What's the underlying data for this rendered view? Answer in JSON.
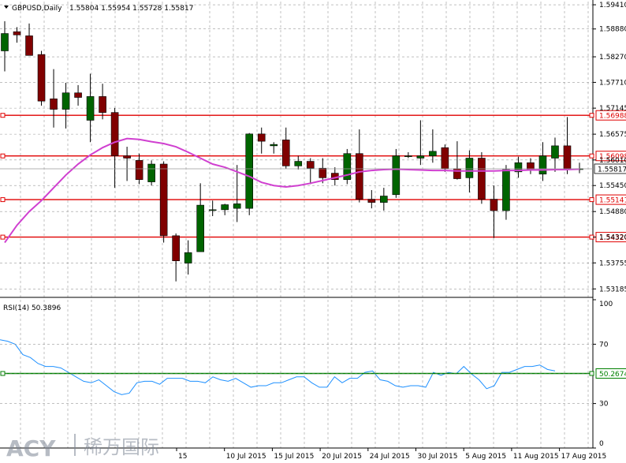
{
  "chart_data": {
    "type": "candlestick",
    "symbol_header": "GBPUSD,Daily",
    "ohlc_header": "1.55804 1.55954 1.55728 1.55817",
    "price_ticks": [
      "1.59410",
      "1.58880",
      "1.58270",
      "1.57710",
      "1.57145",
      "1.56575",
      "1.56010",
      "1.55450",
      "1.54880",
      "1.54320",
      "1.53755",
      "1.53185"
    ],
    "price_range": [
      1.53,
      1.5948
    ],
    "x_labels": [
      {
        "idx": 0,
        "text": "15"
      },
      {
        "idx": 5,
        "text": "10 Jul 2015"
      },
      {
        "idx": 10,
        "text": "15 Jul 2015"
      },
      {
        "idx": 15,
        "text": "20 Jul 2015"
      },
      {
        "idx": 20,
        "text": "24 Jul 2015"
      },
      {
        "idx": 25,
        "text": "30 Jul 2015"
      },
      {
        "idx": 30,
        "text": "5 Aug 2015"
      },
      {
        "idx": 35,
        "text": "11 Aug 2015"
      },
      {
        "idx": 40,
        "text": "17 Aug 2015"
      }
    ],
    "candles": [
      {
        "o": 1.584,
        "h": 1.5905,
        "l": 1.5795,
        "c": 1.5878
      },
      {
        "o": 1.5882,
        "h": 1.5892,
        "l": 1.5858,
        "c": 1.5875
      },
      {
        "o": 1.5873,
        "h": 1.59,
        "l": 1.583,
        "c": 1.583
      },
      {
        "o": 1.5832,
        "h": 1.584,
        "l": 1.572,
        "c": 1.573
      },
      {
        "o": 1.5735,
        "h": 1.58,
        "l": 1.5672,
        "c": 1.5712
      },
      {
        "o": 1.5712,
        "h": 1.577,
        "l": 1.567,
        "c": 1.5748
      },
      {
        "o": 1.5748,
        "h": 1.5765,
        "l": 1.572,
        "c": 1.5738
      },
      {
        "o": 1.5688,
        "h": 1.579,
        "l": 1.564,
        "c": 1.574
      },
      {
        "o": 1.574,
        "h": 1.5768,
        "l": 1.569,
        "c": 1.5705
      },
      {
        "o": 1.5705,
        "h": 1.5715,
        "l": 1.554,
        "c": 1.561
      },
      {
        "o": 1.561,
        "h": 1.563,
        "l": 1.5555,
        "c": 1.5605
      },
      {
        "o": 1.56,
        "h": 1.5615,
        "l": 1.5548,
        "c": 1.5558
      },
      {
        "o": 1.5553,
        "h": 1.56,
        "l": 1.5545,
        "c": 1.5592
      },
      {
        "o": 1.5592,
        "h": 1.5598,
        "l": 1.542,
        "c": 1.5435
      },
      {
        "o": 1.5435,
        "h": 1.544,
        "l": 1.5335,
        "c": 1.538
      },
      {
        "o": 1.5375,
        "h": 1.5425,
        "l": 1.535,
        "c": 1.5398
      },
      {
        "o": 1.54,
        "h": 1.555,
        "l": 1.54,
        "c": 1.5502
      },
      {
        "o": 1.5492,
        "h": 1.5512,
        "l": 1.5478,
        "c": 1.5492
      },
      {
        "o": 1.5492,
        "h": 1.5505,
        "l": 1.548,
        "c": 1.5503
      },
      {
        "o": 1.5495,
        "h": 1.559,
        "l": 1.5465,
        "c": 1.5505
      },
      {
        "o": 1.5495,
        "h": 1.566,
        "l": 1.548,
        "c": 1.5658
      },
      {
        "o": 1.5658,
        "h": 1.5672,
        "l": 1.5615,
        "c": 1.5642
      },
      {
        "o": 1.5632,
        "h": 1.564,
        "l": 1.5615,
        "c": 1.5635
      },
      {
        "o": 1.5645,
        "h": 1.5672,
        "l": 1.5582,
        "c": 1.5588
      },
      {
        "o": 1.5588,
        "h": 1.561,
        "l": 1.558,
        "c": 1.5598
      },
      {
        "o": 1.5598,
        "h": 1.5605,
        "l": 1.5548,
        "c": 1.5583
      },
      {
        "o": 1.5583,
        "h": 1.5605,
        "l": 1.555,
        "c": 1.5562
      },
      {
        "o": 1.5572,
        "h": 1.5585,
        "l": 1.5545,
        "c": 1.5558
      },
      {
        "o": 1.5558,
        "h": 1.5625,
        "l": 1.5548,
        "c": 1.5615
      },
      {
        "o": 1.5615,
        "h": 1.5668,
        "l": 1.5508,
        "c": 1.5515
      },
      {
        "o": 1.5515,
        "h": 1.5535,
        "l": 1.5495,
        "c": 1.5508
      },
      {
        "o": 1.5508,
        "h": 1.554,
        "l": 1.549,
        "c": 1.5522
      },
      {
        "o": 1.5525,
        "h": 1.5625,
        "l": 1.5518,
        "c": 1.561
      },
      {
        "o": 1.561,
        "h": 1.5618,
        "l": 1.5605,
        "c": 1.561
      },
      {
        "o": 1.5605,
        "h": 1.5688,
        "l": 1.559,
        "c": 1.561
      },
      {
        "o": 1.561,
        "h": 1.5668,
        "l": 1.5595,
        "c": 1.562
      },
      {
        "o": 1.5628,
        "h": 1.5635,
        "l": 1.5575,
        "c": 1.5582
      },
      {
        "o": 1.5582,
        "h": 1.5642,
        "l": 1.5558,
        "c": 1.556
      },
      {
        "o": 1.5562,
        "h": 1.5622,
        "l": 1.553,
        "c": 1.5605
      },
      {
        "o": 1.5605,
        "h": 1.5618,
        "l": 1.5505,
        "c": 1.5515
      },
      {
        "o": 1.5515,
        "h": 1.5545,
        "l": 1.543,
        "c": 1.549
      },
      {
        "o": 1.549,
        "h": 1.559,
        "l": 1.547,
        "c": 1.558
      },
      {
        "o": 1.5575,
        "h": 1.5608,
        "l": 1.5562,
        "c": 1.5595
      },
      {
        "o": 1.5595,
        "h": 1.5605,
        "l": 1.557,
        "c": 1.558
      },
      {
        "o": 1.557,
        "h": 1.564,
        "l": 1.5555,
        "c": 1.561
      },
      {
        "o": 1.5605,
        "h": 1.565,
        "l": 1.5575,
        "c": 1.5632
      },
      {
        "o": 1.5632,
        "h": 1.5695,
        "l": 1.557,
        "c": 1.5582
      },
      {
        "o": 1.558,
        "h": 1.5595,
        "l": 1.5572,
        "c": 1.5582
      }
    ],
    "ma_line": [
      1.542,
      1.5458,
      1.5488,
      1.5512,
      1.554,
      1.5568,
      1.5592,
      1.5612,
      1.5628,
      1.564,
      1.5648,
      1.5646,
      1.5641,
      1.5637,
      1.563,
      1.5618,
      1.5605,
      1.5592,
      1.5585,
      1.5575,
      1.5565,
      1.5552,
      1.5545,
      1.5542,
      1.5545,
      1.555,
      1.5556,
      1.5562,
      1.5568,
      1.5575,
      1.5578,
      1.558,
      1.5581,
      1.558,
      1.5579,
      1.5578,
      1.5578,
      1.5577,
      1.5577,
      1.5577,
      1.5577,
      1.5578,
      1.5578,
      1.5579,
      1.5579,
      1.558,
      1.558,
      1.5581
    ],
    "horizontal_levels": [
      {
        "price": 1.56988,
        "label": "1.56988"
      },
      {
        "price": 1.56098,
        "label": "1.56098"
      },
      {
        "price": 1.55141,
        "label": "1.55141"
      },
      {
        "price": 1.5432,
        "label": "1.54320"
      }
    ],
    "current_price_label": "1.55817",
    "current_price": 1.55817,
    "rsi": {
      "header": "RSI(14) 50.3896",
      "ticks": [
        "100",
        "70",
        "50",
        "30",
        "0"
      ],
      "level": {
        "value": 50.2674,
        "label": "50.2674"
      },
      "values": [
        73,
        72,
        70,
        63,
        61,
        57,
        55,
        55,
        54,
        51,
        48,
        45,
        44,
        46,
        42,
        38,
        36,
        37,
        44,
        45,
        45,
        43,
        47,
        47,
        47,
        45,
        45,
        44,
        48,
        46,
        45,
        47,
        44,
        41,
        42,
        42,
        44,
        44,
        46,
        48,
        48,
        44,
        41,
        41,
        48,
        44,
        47,
        47,
        51,
        52,
        46,
        45,
        42,
        41,
        42,
        42,
        41,
        51,
        49,
        51,
        50,
        55,
        50,
        46,
        40,
        42,
        51,
        51,
        53,
        55,
        55,
        56,
        53,
        52
      ]
    }
  },
  "logo": {
    "text": "ACY",
    "cn": "稀万国际"
  },
  "colors": {
    "bull": "#006400",
    "bear": "#800000",
    "level_line": "#e00000",
    "ma": "#d040d0",
    "rsi": "#1e90ff",
    "rsi_level": "#008000",
    "grid": "#9a9a9a"
  }
}
